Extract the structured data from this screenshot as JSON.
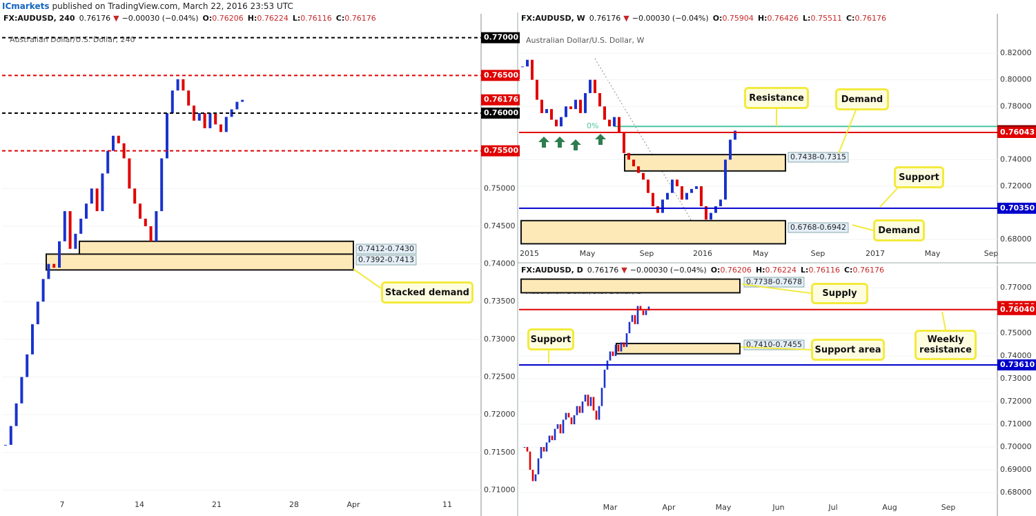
{
  "header": {
    "brand": "ICmarkets",
    "text": "published on TradingView.com, March 22, 2016 23:53 UTC"
  },
  "chart_data": [
    {
      "type": "candlestick",
      "symbol": "FX:AUDUSD, 240",
      "last": "0.76176",
      "direction": "▼",
      "change": "−0.00030 (−0.04%)",
      "ohlc": [
        {
          "label": "O:",
          "value": "0.76206"
        },
        {
          "label": "H:",
          "value": "0.76224"
        },
        {
          "label": "L:",
          "value": "0.76116"
        },
        {
          "label": "C:",
          "value": "0.76176"
        }
      ],
      "title": "Australian Dollar/U.S. Dollar, 240",
      "values": [
        0.716,
        0.7185,
        0.7215,
        0.725,
        0.728,
        0.732,
        0.735,
        0.738,
        0.74,
        0.7395,
        0.743,
        0.747,
        0.742,
        0.744,
        0.746,
        0.748,
        0.75,
        0.747,
        0.752,
        0.755,
        0.757,
        0.756,
        0.754,
        0.75,
        0.748,
        0.746,
        0.745,
        0.743,
        0.747,
        0.754,
        0.76,
        0.763,
        0.7645,
        0.763,
        0.761,
        0.759,
        0.76,
        0.758,
        0.76,
        0.7585,
        0.7575,
        0.7595,
        0.7605,
        0.7615,
        0.76176
      ],
      "ylim": [
        0.7073,
        0.7718
      ],
      "yticks": [
        {
          "value": 0.75,
          "label": "0.75000"
        },
        {
          "value": 0.745,
          "label": "0.74500"
        },
        {
          "value": 0.74,
          "label": "0.74000"
        },
        {
          "value": 0.735,
          "label": "0.73500"
        },
        {
          "value": 0.73,
          "label": "0.73000"
        },
        {
          "value": 0.725,
          "label": "0.72500"
        },
        {
          "value": 0.72,
          "label": "0.72000"
        },
        {
          "value": 0.715,
          "label": "0.71500"
        },
        {
          "value": 0.71,
          "label": "0.71000"
        }
      ],
      "levels": [
        {
          "value": 0.77,
          "label": "0.77000",
          "color": "#000000",
          "line": "dashed"
        },
        {
          "value": 0.765,
          "label": "0.76500",
          "color": "#e00000",
          "line": "dashed"
        },
        {
          "value": 0.76176,
          "label": "0.76176",
          "color": "#e00000",
          "line": "none"
        },
        {
          "value": 0.76,
          "label": "0.76000",
          "color": "#000000",
          "line": "dashed"
        },
        {
          "value": 0.755,
          "label": "0.75500",
          "color": "#e00000",
          "line": "dashed"
        }
      ],
      "zones": [
        {
          "low": 0.7412,
          "high": 0.743,
          "label": "0.7412-0.7430"
        },
        {
          "low": 0.7392,
          "high": 0.7413,
          "label": "0.7392-0.7413"
        }
      ],
      "annotations": [
        "Stacked demand"
      ],
      "xticks": [
        "7",
        "14",
        "21",
        "28",
        "Apr",
        "11"
      ]
    },
    {
      "type": "candlestick",
      "symbol": "FX:AUDUSD, W",
      "last": "0.76176",
      "direction": "▼",
      "change": "−0.00030 (−0.04%)",
      "ohlc": [
        {
          "label": "O:",
          "value": "0.75904"
        },
        {
          "label": "H:",
          "value": "0.76426"
        },
        {
          "label": "L:",
          "value": "0.75511"
        },
        {
          "label": "C:",
          "value": "0.76176"
        }
      ],
      "title": "Australian Dollar/U.S. Dollar, W",
      "values": [
        0.81,
        0.815,
        0.8,
        0.785,
        0.775,
        0.778,
        0.77,
        0.765,
        0.772,
        0.78,
        0.778,
        0.785,
        0.775,
        0.79,
        0.8,
        0.79,
        0.78,
        0.77,
        0.765,
        0.772,
        0.76,
        0.745,
        0.74,
        0.735,
        0.73,
        0.725,
        0.715,
        0.705,
        0.7,
        0.71,
        0.715,
        0.725,
        0.72,
        0.71,
        0.715,
        0.718,
        0.72,
        0.705,
        0.695,
        0.7,
        0.705,
        0.71,
        0.74,
        0.755,
        0.76176
      ],
      "ylim": [
        0.6656,
        0.8418
      ],
      "yticks": [
        {
          "value": 0.82,
          "label": "0.82000"
        },
        {
          "value": 0.8,
          "label": "0.80000"
        },
        {
          "value": 0.78,
          "label": "0.78000"
        },
        {
          "value": 0.74,
          "label": "0.74000"
        },
        {
          "value": 0.72,
          "label": "0.72000"
        },
        {
          "value": 0.68,
          "label": "0.68000"
        }
      ],
      "levels": [
        {
          "value": 0.76176,
          "label": "0.76176",
          "color": "#8b0000",
          "line": "none"
        },
        {
          "value": 0.76043,
          "label": "0.76043",
          "color": "#e00000",
          "line": "solid"
        },
        {
          "value": 0.7035,
          "label": "0.70350",
          "color": "#0000cc",
          "line": "solid"
        }
      ],
      "fib": {
        "value": 0.765,
        "label": "0%",
        "color": "#4dc3a0"
      },
      "zones": [
        {
          "low": 0.7315,
          "high": 0.7438,
          "label": "0.7438-0.7315"
        },
        {
          "low": 0.6768,
          "high": 0.6942,
          "label": "0.6768-0.6942"
        }
      ],
      "annotations": [
        "Resistance",
        "Demand",
        "Support",
        "Demand"
      ],
      "xticks": [
        "2015",
        "May",
        "Sep",
        "2016",
        "May",
        "Sep",
        "2017",
        "May",
        "Sep"
      ]
    },
    {
      "type": "candlestick",
      "symbol": "FX:AUDUSD, D",
      "last": "0.76176",
      "direction": "▼",
      "change": "−0.00030 (−0.04%)",
      "ohlc": [
        {
          "label": "O:",
          "value": "0.76206"
        },
        {
          "label": "H:",
          "value": "0.76224"
        },
        {
          "label": "L:",
          "value": "0.76116"
        },
        {
          "label": "C:",
          "value": "0.76176"
        }
      ],
      "title": "Australian Dollar/U.S. Dollar, D",
      "values": [
        0.7,
        0.698,
        0.69,
        0.685,
        0.688,
        0.695,
        0.7,
        0.698,
        0.702,
        0.705,
        0.703,
        0.708,
        0.71,
        0.706,
        0.712,
        0.715,
        0.713,
        0.71,
        0.714,
        0.718,
        0.715,
        0.72,
        0.723,
        0.718,
        0.722,
        0.716,
        0.712,
        0.718,
        0.726,
        0.734,
        0.738,
        0.742,
        0.74,
        0.745,
        0.742,
        0.746,
        0.744,
        0.75,
        0.755,
        0.758,
        0.754,
        0.762,
        0.76,
        0.758,
        0.76,
        0.76176
      ],
      "ylim": [
        0.6715,
        0.7752
      ],
      "yticks": [
        {
          "value": 0.77,
          "label": "0.77000"
        },
        {
          "value": 0.75,
          "label": "0.75000"
        },
        {
          "value": 0.74,
          "label": "0.74000"
        },
        {
          "value": 0.73,
          "label": "0.73000"
        },
        {
          "value": 0.72,
          "label": "0.72000"
        },
        {
          "value": 0.71,
          "label": "0.71000"
        },
        {
          "value": 0.7,
          "label": "0.70000"
        },
        {
          "value": 0.69,
          "label": "0.69000"
        },
        {
          "value": 0.68,
          "label": "0.68000"
        }
      ],
      "levels": [
        {
          "value": 0.76176,
          "label": "0.76176",
          "color": "#e00000",
          "line": "none"
        },
        {
          "value": 0.7604,
          "label": "0.76040",
          "color": "#e00000",
          "line": "solid"
        },
        {
          "value": 0.7361,
          "label": "0.73610",
          "color": "#0000cc",
          "line": "solid"
        }
      ],
      "zones": [
        {
          "low": 0.7678,
          "high": 0.7738,
          "label": "0.7738-0.7678"
        },
        {
          "low": 0.741,
          "high": 0.7455,
          "label": "0.7410-0.7455"
        }
      ],
      "annotations": [
        "Supply",
        "Support",
        "Support area",
        "Weekly resistance"
      ],
      "xticks": [
        "Mar",
        "Apr",
        "May",
        "Jun",
        "Jul",
        "Aug",
        "Sep"
      ]
    }
  ]
}
